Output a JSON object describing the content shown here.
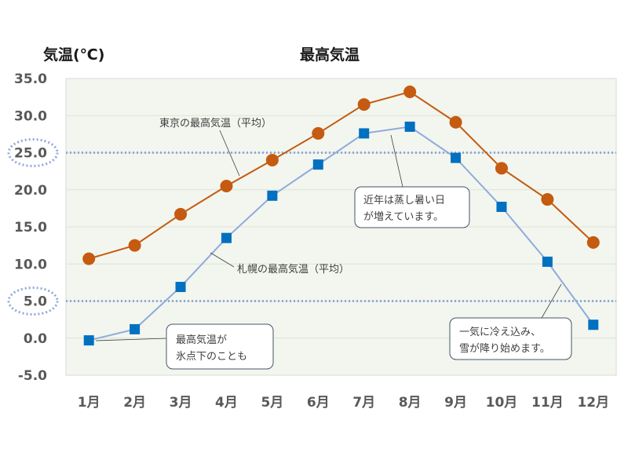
{
  "chart_data": {
    "type": "line",
    "title": "最高気温",
    "ylabel": "気温(℃)",
    "xlabel": "",
    "ylim": [
      -5,
      35
    ],
    "yticks": [
      "35.0",
      "30.0",
      "25.0",
      "20.0",
      "15.0",
      "10.0",
      "5.0",
      "0.0",
      "-5.0"
    ],
    "categories": [
      "1月",
      "2月",
      "3月",
      "4月",
      "5月",
      "6月",
      "7月",
      "8月",
      "9月",
      "10月",
      "11月",
      "12月"
    ],
    "series": [
      {
        "name": "東京の最高気温（平均）",
        "color": "#c55a11",
        "marker": "circle",
        "values": [
          10.7,
          12.5,
          16.7,
          20.5,
          24.0,
          27.6,
          31.5,
          33.2,
          29.1,
          22.9,
          18.7,
          12.9
        ]
      },
      {
        "name": "札幌の最高気温（平均）",
        "color": "#0070c0",
        "line_color": "#8faadc",
        "marker": "square",
        "values": [
          -0.3,
          1.2,
          6.9,
          13.5,
          19.2,
          23.4,
          27.6,
          28.5,
          24.3,
          17.7,
          10.3,
          1.8
        ]
      }
    ],
    "reference_lines": [
      25,
      5
    ],
    "grid": true,
    "annotations": [
      {
        "lines": [
          "近年は蒸し暑い日",
          "が増えています。"
        ]
      },
      {
        "lines": [
          "最高気温が",
          "氷点下のことも"
        ]
      },
      {
        "lines": [
          "一気に冷え込み、",
          "雪が降り始めます。"
        ]
      }
    ]
  }
}
